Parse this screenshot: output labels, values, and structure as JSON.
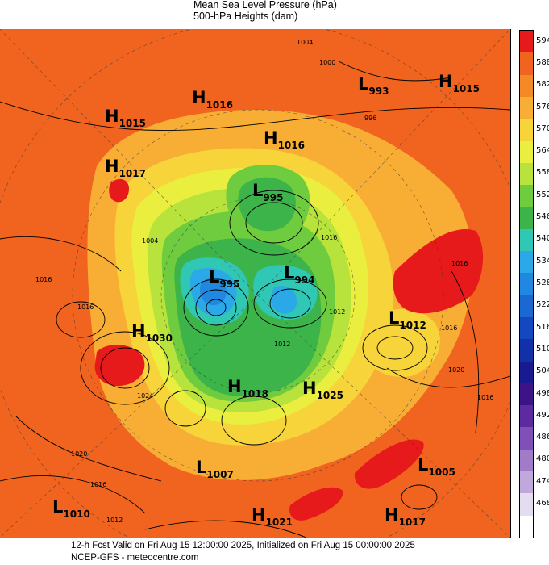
{
  "legend": {
    "line1": "Mean Sea Level Pressure (hPa)",
    "line2": "500-hPa Heights (dam)"
  },
  "colorbar": {
    "levels": [
      {
        "label": "594",
        "color": "#e61a1a"
      },
      {
        "label": "588",
        "color": "#f06420"
      },
      {
        "label": "582",
        "color": "#f48a26"
      },
      {
        "label": "576",
        "color": "#f8ae34"
      },
      {
        "label": "570",
        "color": "#f6d43a"
      },
      {
        "label": "564",
        "color": "#eaee3e"
      },
      {
        "label": "558",
        "color": "#b8e23c"
      },
      {
        "label": "552",
        "color": "#6fcc3e"
      },
      {
        "label": "546",
        "color": "#3cb44a"
      },
      {
        "label": "540",
        "color": "#30c8b4"
      },
      {
        "label": "534",
        "color": "#2aa8e8"
      },
      {
        "label": "528",
        "color": "#2088e0"
      },
      {
        "label": "522",
        "color": "#1a68d0"
      },
      {
        "label": "516",
        "color": "#1448c0"
      },
      {
        "label": "510",
        "color": "#1230a8"
      },
      {
        "label": "504",
        "color": "#1a1a90"
      },
      {
        "label": "498",
        "color": "#3c1488"
      },
      {
        "label": "492",
        "color": "#5e2aa0"
      },
      {
        "label": "486",
        "color": "#8050b8"
      },
      {
        "label": "480",
        "color": "#a07cc8"
      },
      {
        "label": "474",
        "color": "#c0a8dc"
      },
      {
        "label": "468",
        "color": "#e4dcef"
      },
      {
        "label": "",
        "color": "#ffffff"
      }
    ]
  },
  "systems": [
    {
      "type": "H",
      "value": "1016",
      "name": "H1016-top"
    },
    {
      "type": "L",
      "value": "993",
      "name": "L993"
    },
    {
      "type": "H",
      "value": "1015",
      "name": "H1015-right"
    },
    {
      "type": "H",
      "value": "1015",
      "name": "H1015-left"
    },
    {
      "type": "H",
      "value": "1016",
      "name": "H1016-center"
    },
    {
      "type": "H",
      "value": "1017",
      "name": "H1017-left"
    },
    {
      "type": "L",
      "value": "995",
      "name": "L995-upper"
    },
    {
      "type": "L",
      "value": "995",
      "name": "L995-lower"
    },
    {
      "type": "L",
      "value": "994",
      "name": "L994"
    },
    {
      "type": "L",
      "value": "1012",
      "name": "L1012"
    },
    {
      "type": "H",
      "value": "1030",
      "name": "H1030"
    },
    {
      "type": "H",
      "value": "1018",
      "name": "H1018"
    },
    {
      "type": "H",
      "value": "1025",
      "name": "H1025"
    },
    {
      "type": "L",
      "value": "1007",
      "name": "L1007"
    },
    {
      "type": "L",
      "value": "1005",
      "name": "L1005"
    },
    {
      "type": "L",
      "value": "1010",
      "name": "L1010"
    },
    {
      "type": "H",
      "value": "1021",
      "name": "H1021"
    },
    {
      "type": "H",
      "value": "1017",
      "name": "H1017-bottom"
    }
  ],
  "isobar_labels": [
    "1004",
    "1000",
    "996",
    "1004",
    "1016",
    "1016",
    "1016",
    "1012",
    "1024",
    "1020",
    "1016",
    "1012",
    "1016",
    "1020",
    "1016",
    "1016",
    "1012",
    "1008",
    "1016",
    "1016",
    "1016"
  ],
  "footer": {
    "line1": "12-h Fcst Valid on Fri Aug 15 12:00:00 2025, Initialized on Fri Aug 15 00:00:00 2025",
    "line2": "NCEP-GFS - meteocentre.com"
  }
}
